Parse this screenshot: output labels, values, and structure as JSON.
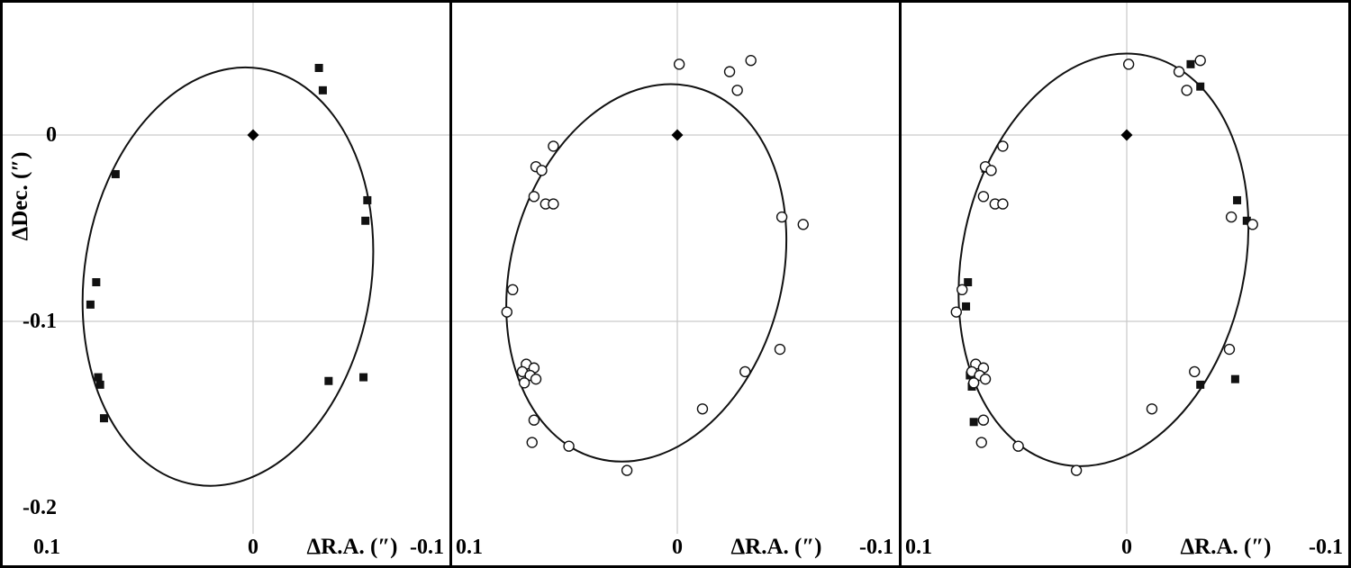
{
  "figure": {
    "ylabel": "ΔDec. (″)",
    "xlabel": "ΔR.A. (″)",
    "x_ticks": [
      "0.1",
      "0",
      "-0.1"
    ],
    "y_ticks": [
      "0",
      "-0.1",
      "-0.2"
    ],
    "colors": {
      "marker": "#111111",
      "ellipse": "#111111",
      "grid": "#c9c9c9",
      "border": "#000000",
      "background": "#ffffff"
    }
  },
  "chart_data": [
    {
      "type": "scatter",
      "panel": "left",
      "title": "",
      "xlabel": "ΔR.A. (″)",
      "ylabel": "ΔDec. (″)",
      "xlim": [
        0.1,
        -0.1
      ],
      "x_axis_reversed": true,
      "ylim": [
        -0.21,
        0.07
      ],
      "x_ticks": [
        0.1,
        0,
        -0.1
      ],
      "y_ticks": [
        0,
        -0.1,
        -0.2
      ],
      "grid": true,
      "ellipse_fit": {
        "cx": 0.013,
        "cy": -0.076,
        "semi_major": 0.113,
        "semi_minor": 0.074,
        "rotation_deg": 9
      },
      "series": [
        {
          "name": "origin-primary",
          "marker": "filled-diamond",
          "points": [
            [
              0,
              0
            ]
          ]
        },
        {
          "name": "measurements-filled-squares",
          "marker": "filled-square",
          "points": [
            [
              -0.034,
              0.036
            ],
            [
              -0.036,
              0.024
            ],
            [
              0.071,
              -0.021
            ],
            [
              -0.059,
              -0.035
            ],
            [
              -0.058,
              -0.046
            ],
            [
              0.081,
              -0.079
            ],
            [
              0.084,
              -0.091
            ],
            [
              0.08,
              -0.13
            ],
            [
              0.079,
              -0.134
            ],
            [
              0.077,
              -0.152
            ],
            [
              -0.039,
              -0.132
            ],
            [
              -0.057,
              -0.13
            ]
          ]
        }
      ]
    },
    {
      "type": "scatter",
      "panel": "middle",
      "title": "",
      "xlabel": "ΔR.A. (″)",
      "ylabel": "ΔDec. (″)",
      "xlim": [
        0.1,
        -0.1
      ],
      "x_axis_reversed": true,
      "ylim": [
        -0.21,
        0.07
      ],
      "x_ticks": [
        0.1,
        0,
        -0.1
      ],
      "y_ticks": [
        0,
        -0.1,
        -0.2
      ],
      "grid": true,
      "ellipse_fit": {
        "cx": 0.016,
        "cy": -0.074,
        "semi_major": 0.103,
        "semi_minor": 0.07,
        "rotation_deg": 15
      },
      "series": [
        {
          "name": "origin-primary",
          "marker": "filled-diamond",
          "points": [
            [
              0,
              0
            ]
          ]
        },
        {
          "name": "measurements-open-circles",
          "marker": "open-circle",
          "points": [
            [
              -0.001,
              0.038
            ],
            [
              -0.027,
              0.034
            ],
            [
              -0.038,
              0.04
            ],
            [
              -0.031,
              0.024
            ],
            [
              0.064,
              -0.006
            ],
            [
              0.073,
              -0.017
            ],
            [
              0.07,
              -0.019
            ],
            [
              0.074,
              -0.033
            ],
            [
              0.068,
              -0.037
            ],
            [
              0.064,
              -0.037
            ],
            [
              -0.054,
              -0.044
            ],
            [
              -0.065,
              -0.048
            ],
            [
              0.085,
              -0.083
            ],
            [
              0.088,
              -0.095
            ],
            [
              -0.053,
              -0.115
            ],
            [
              -0.035,
              -0.127
            ],
            [
              0.078,
              -0.123
            ],
            [
              0.074,
              -0.125
            ],
            [
              0.08,
              -0.127
            ],
            [
              0.076,
              -0.129
            ],
            [
              0.073,
              -0.131
            ],
            [
              0.079,
              -0.133
            ],
            [
              -0.013,
              -0.147
            ],
            [
              0.074,
              -0.153
            ],
            [
              0.075,
              -0.165
            ],
            [
              0.056,
              -0.167
            ],
            [
              0.026,
              -0.18
            ]
          ]
        }
      ]
    },
    {
      "type": "scatter",
      "panel": "right",
      "title": "",
      "xlabel": "ΔR.A. (″)",
      "ylabel": "ΔDec. (″)",
      "xlim": [
        0.1,
        -0.1
      ],
      "x_axis_reversed": true,
      "ylim": [
        -0.21,
        0.07
      ],
      "x_ticks": [
        0.1,
        0,
        -0.1
      ],
      "y_ticks": [
        0,
        -0.1,
        -0.2
      ],
      "grid": true,
      "ellipse_fit": {
        "cx": 0.012,
        "cy": -0.067,
        "semi_major": 0.112,
        "semi_minor": 0.073,
        "rotation_deg": 12
      },
      "series": [
        {
          "name": "origin-primary",
          "marker": "filled-diamond",
          "points": [
            [
              0,
              0
            ]
          ]
        },
        {
          "name": "measurements-filled-squares",
          "marker": "filled-square",
          "points": [
            [
              -0.033,
              0.038
            ],
            [
              -0.038,
              0.026
            ],
            [
              0.073,
              -0.018
            ],
            [
              -0.057,
              -0.035
            ],
            [
              -0.062,
              -0.046
            ],
            [
              0.082,
              -0.079
            ],
            [
              0.083,
              -0.092
            ],
            [
              0.081,
              -0.129
            ],
            [
              0.08,
              -0.135
            ],
            [
              0.079,
              -0.154
            ],
            [
              -0.038,
              -0.134
            ],
            [
              -0.056,
              -0.131
            ]
          ]
        },
        {
          "name": "measurements-open-circles",
          "marker": "open-circle",
          "points": [
            [
              -0.001,
              0.038
            ],
            [
              -0.027,
              0.034
            ],
            [
              -0.038,
              0.04
            ],
            [
              -0.031,
              0.024
            ],
            [
              0.064,
              -0.006
            ],
            [
              0.073,
              -0.017
            ],
            [
              0.07,
              -0.019
            ],
            [
              0.074,
              -0.033
            ],
            [
              0.068,
              -0.037
            ],
            [
              0.064,
              -0.037
            ],
            [
              -0.054,
              -0.044
            ],
            [
              -0.065,
              -0.048
            ],
            [
              0.085,
              -0.083
            ],
            [
              0.088,
              -0.095
            ],
            [
              -0.053,
              -0.115
            ],
            [
              -0.035,
              -0.127
            ],
            [
              0.078,
              -0.123
            ],
            [
              0.074,
              -0.125
            ],
            [
              0.08,
              -0.127
            ],
            [
              0.076,
              -0.129
            ],
            [
              0.073,
              -0.131
            ],
            [
              0.079,
              -0.133
            ],
            [
              -0.013,
              -0.147
            ],
            [
              0.074,
              -0.153
            ],
            [
              0.075,
              -0.165
            ],
            [
              0.056,
              -0.167
            ],
            [
              0.026,
              -0.18
            ]
          ]
        }
      ]
    }
  ]
}
